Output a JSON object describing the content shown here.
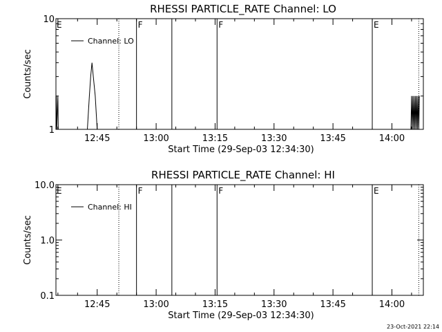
{
  "timestamp": "23-Oct-2021 22:14",
  "chart_data": [
    {
      "type": "line",
      "title": "RHESSI PARTICLE_RATE Channel: LO",
      "xlabel": "Start Time (29-Sep-03 12:34:30)",
      "ylabel": "Counts/sec",
      "yscale": "log",
      "xlim": [
        "12:34:30",
        "14:08:00"
      ],
      "ylim": [
        1,
        10
      ],
      "x_ticks": [
        "12:45",
        "13:00",
        "13:15",
        "13:30",
        "13:45",
        "14:00"
      ],
      "y_ticks": [
        "1",
        "10"
      ],
      "legend": {
        "position": "top-left",
        "label": "Channel: LO"
      },
      "series": [
        {
          "name": "Channel: LO",
          "x": [
            "12:34:30",
            "12:34:36",
            "12:34:42",
            "12:35:00",
            "12:35:06",
            "12:42:30",
            "12:43:00",
            "12:43:20",
            "12:43:40",
            "12:44:00",
            "12:44:30",
            "12:45:00",
            "14:04:50",
            "14:05:00",
            "14:05:10",
            "14:05:20",
            "14:05:30",
            "14:05:40",
            "14:05:50",
            "14:06:00",
            "14:06:10",
            "14:06:20",
            "14:06:30",
            "14:06:40",
            "14:06:50",
            "14:07:00"
          ],
          "y": [
            1,
            2,
            1,
            2,
            1,
            1,
            2,
            3,
            4,
            3,
            2,
            1,
            1,
            2,
            1,
            2,
            1,
            2,
            1,
            2,
            1,
            2,
            1,
            2,
            1,
            2
          ]
        }
      ],
      "vertical_lines": [
        {
          "time": "12:50:30",
          "style": "dotted",
          "flag": ""
        },
        {
          "time": "12:55:00",
          "style": "solid",
          "flag": "F"
        },
        {
          "time": "13:04:00",
          "style": "solid",
          "flag": ""
        },
        {
          "time": "13:15:30",
          "style": "solid",
          "flag": "F"
        },
        {
          "time": "13:55:00",
          "style": "solid",
          "flag": "E"
        },
        {
          "time": "14:06:50",
          "style": "dotted",
          "flag": ""
        }
      ],
      "left_flag": "E"
    },
    {
      "type": "line",
      "title": "RHESSI PARTICLE_RATE Channel: HI",
      "xlabel": "Start Time (29-Sep-03 12:34:30)",
      "ylabel": "Counts/sec",
      "yscale": "log",
      "xlim": [
        "12:34:30",
        "14:08:00"
      ],
      "ylim": [
        0.1,
        10
      ],
      "x_ticks": [
        "12:45",
        "13:00",
        "13:15",
        "13:30",
        "13:45",
        "14:00"
      ],
      "y_ticks": [
        "0.1",
        "1.0",
        "10.0"
      ],
      "legend": {
        "position": "top-left",
        "label": "Channel: HI"
      },
      "series": [
        {
          "name": "Channel: HI",
          "x": [],
          "y": []
        }
      ],
      "vertical_lines": [
        {
          "time": "12:50:30",
          "style": "dotted",
          "flag": ""
        },
        {
          "time": "12:55:00",
          "style": "solid",
          "flag": "F"
        },
        {
          "time": "13:04:00",
          "style": "solid",
          "flag": ""
        },
        {
          "time": "13:15:30",
          "style": "solid",
          "flag": "F"
        },
        {
          "time": "13:55:00",
          "style": "solid",
          "flag": "E"
        },
        {
          "time": "14:06:50",
          "style": "dotted",
          "flag": ""
        }
      ],
      "left_flag": "E"
    }
  ]
}
